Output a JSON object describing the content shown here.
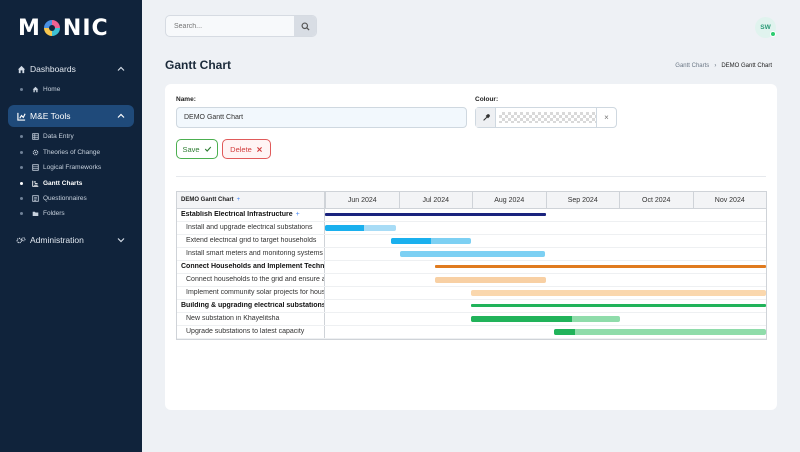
{
  "app": {
    "logo_text_left": "M",
    "logo_text_right": "NIC"
  },
  "sidebar": {
    "sections": [
      {
        "label": "Dashboards",
        "icon": "home-icon"
      },
      {
        "label": "M&E Tools",
        "icon": "chart-icon"
      },
      {
        "label": "Administration",
        "icon": "gears-icon"
      }
    ],
    "dashboards_items": [
      {
        "label": "Home",
        "icon": "home-icon"
      }
    ],
    "tools_items": [
      {
        "label": "Data Entry",
        "icon": "table-icon"
      },
      {
        "label": "Theories of Change",
        "icon": "gear-icon"
      },
      {
        "label": "Logical Frameworks",
        "icon": "table-icon"
      },
      {
        "label": "Gantt Charts",
        "icon": "gantt-icon",
        "active": true
      },
      {
        "label": "Questionnaires",
        "icon": "list-icon"
      },
      {
        "label": "Folders",
        "icon": "folder-icon"
      }
    ]
  },
  "topbar": {
    "search_placeholder": "Search...",
    "avatar_initials": "SW"
  },
  "page": {
    "title": "Gantt Chart",
    "breadcrumb": [
      "Gantt Charts",
      "DEMO Gantt Chart"
    ]
  },
  "form": {
    "name_label": "Name:",
    "name_value": "DEMO Gantt Chart",
    "colour_label": "Colour:",
    "save_label": "Save",
    "delete_label": "Delete"
  },
  "gantt": {
    "title": "DEMO Gantt Chart",
    "months": [
      "Jun 2024",
      "Jul 2024",
      "Aug 2024",
      "Sep 2024",
      "Oct 2024",
      "Nov 2024"
    ],
    "rows": [
      {
        "label": "Establish Electrical Infrastructure",
        "type": "parent",
        "start": 0.0,
        "end": 0.5,
        "progress": 1.0,
        "color": "#1a237e",
        "light": "#1a237e"
      },
      {
        "label": "Install and upgrade electrical substations",
        "type": "child",
        "start": 0.0,
        "end": 0.16,
        "progress": 0.55,
        "color": "#1ab0ee",
        "light": "#a8dcf6"
      },
      {
        "label": "Extend electrical grid to target households",
        "type": "child",
        "start": 0.15,
        "end": 0.33,
        "progress": 0.5,
        "color": "#1ab0ee",
        "light": "#7dd0f3"
      },
      {
        "label": "Install smart meters and monitoring systems",
        "type": "child",
        "start": 0.17,
        "end": 0.5,
        "progress": 0.0,
        "color": "#1ab0ee",
        "light": "#7dd0f3"
      },
      {
        "label": "Connect Households and Implement Technologies",
        "type": "parent",
        "start": 0.25,
        "end": 1.0,
        "progress": 1.0,
        "color": "#e07b1f",
        "light": "#e07b1f"
      },
      {
        "label": "Connect households to the grid and ensure access",
        "type": "child",
        "start": 0.25,
        "end": 0.5,
        "progress": 0.0,
        "color": "#e07b1f",
        "light": "#f8d0a4"
      },
      {
        "label": "Implement community solar projects for households",
        "type": "child",
        "start": 0.33,
        "end": 1.0,
        "progress": 0.0,
        "color": "#e07b1f",
        "light": "#fad7ad"
      },
      {
        "label": "Building & upgrading electrical substations",
        "type": "parent",
        "start": 0.33,
        "end": 1.0,
        "progress": 1.0,
        "color": "#21b35a",
        "light": "#21b35a"
      },
      {
        "label": "New substation in Khayelitsha",
        "type": "child",
        "start": 0.33,
        "end": 0.67,
        "progress": 0.68,
        "color": "#21b35a",
        "light": "#8fdcaa"
      },
      {
        "label": "Upgrade substations to latest capacity",
        "type": "child",
        "start": 0.52,
        "end": 1.0,
        "progress": 0.1,
        "color": "#21b35a",
        "light": "#8fdcaa"
      }
    ]
  }
}
